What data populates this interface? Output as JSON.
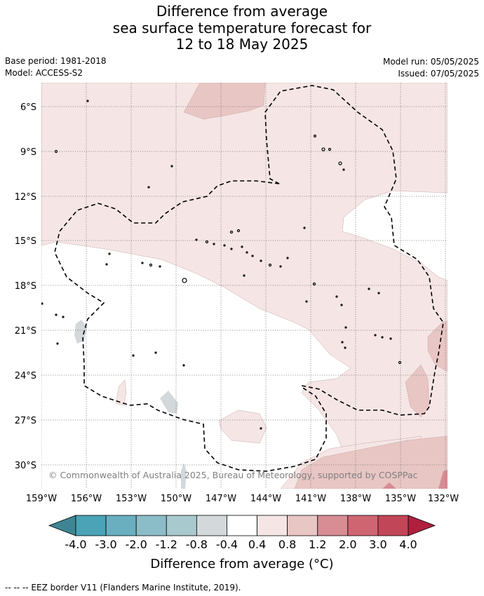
{
  "title": {
    "line1": "Difference from average",
    "line2": "sea surface temperature forecast for",
    "line3": "12 to 18 May 2025"
  },
  "meta": {
    "base_period": "Base period: 1981-2018",
    "model": "Model: ACCESS-S2",
    "model_run": "Model run: 05/05/2025",
    "issued": "Issued: 07/05/2025"
  },
  "map": {
    "lat_labels": [
      "6°S",
      "9°S",
      "12°S",
      "15°S",
      "18°S",
      "21°S",
      "24°S",
      "27°S",
      "30°S"
    ],
    "lon_labels": [
      "159°W",
      "156°W",
      "153°W",
      "150°W",
      "147°W",
      "144°W",
      "141°W",
      "138°W",
      "135°W",
      "132°W"
    ],
    "credit": "© Commonwealth of Australia 2025, Bureau of Meteorology, supported by COSPPac"
  },
  "colorbar": {
    "colors": [
      "#3e8593",
      "#4aa3b6",
      "#6aafc0",
      "#8bbdc8",
      "#a8c9cd",
      "#d3d8db",
      "#ffffff",
      "#f5e6e5",
      "#e8c6c4",
      "#d88c94",
      "#cf6571",
      "#c14658",
      "#b0203e"
    ],
    "tick_labels": [
      "-4.0",
      "-3.0",
      "-2.0",
      "-1.2",
      "-0.8",
      "-0.4",
      "0.4",
      "0.8",
      "1.2",
      "2.0",
      "3.0",
      "4.0"
    ],
    "title": "Difference from average (°C)"
  },
  "footnote": "--  --  -- EEZ border V11 (Flanders Marine Institute, 2019)."
}
